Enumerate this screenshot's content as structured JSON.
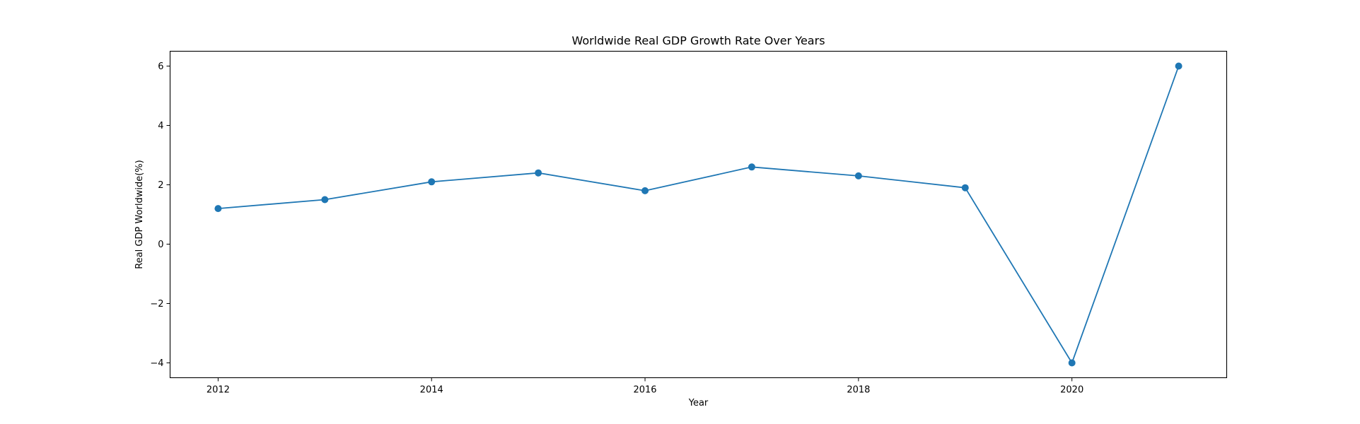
{
  "chart_data": {
    "type": "line",
    "title": "Worldwide Real GDP Growth Rate Over Years",
    "xlabel": "Year",
    "ylabel": "Real GDP Worldwide(%)",
    "x": [
      2012,
      2013,
      2014,
      2015,
      2016,
      2017,
      2018,
      2019,
      2020,
      2021
    ],
    "series": [
      {
        "values": [
          1.2,
          1.5,
          2.1,
          2.4,
          1.8,
          2.6,
          2.3,
          1.9,
          -4.0,
          6.0
        ],
        "color": "#1f77b4",
        "marker": "circle"
      }
    ],
    "xlim": [
      2011.55,
      2021.45
    ],
    "ylim": [
      -4.5,
      6.5
    ],
    "xticks": [
      2012,
      2014,
      2016,
      2018,
      2020
    ],
    "yticks": [
      -4,
      -2,
      0,
      2,
      4,
      6
    ],
    "xtick_labels": [
      "2012",
      "2014",
      "2016",
      "2018",
      "2020"
    ],
    "ytick_labels": [
      "−4",
      "−2",
      "0",
      "2",
      "4",
      "6"
    ],
    "grid": false,
    "legend": false
  }
}
